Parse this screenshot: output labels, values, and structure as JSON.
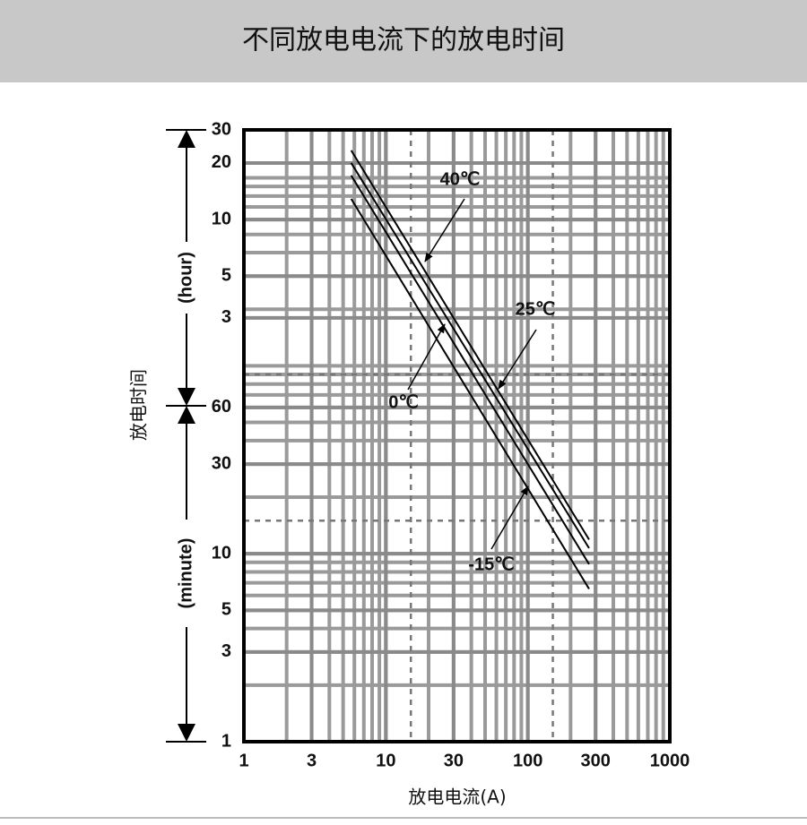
{
  "chart_data": {
    "type": "line",
    "title": "不同放电电流下的放电时间",
    "xlabel": "放电电流(A)",
    "ylabel": "放电时间",
    "y_section_labels": [
      "(hour)",
      "(minute)"
    ],
    "xscale": "log",
    "yscale": "log",
    "xlim": [
      1,
      1000
    ],
    "ylim": [
      1,
      1800
    ],
    "xticks": [
      1,
      3,
      10,
      30,
      100,
      300,
      1000
    ],
    "yticks": [
      1,
      3,
      5,
      10,
      30,
      60,
      {
        "value": 180,
        "label": "3"
      },
      {
        "value": 300,
        "label": "5"
      },
      {
        "value": 600,
        "label": "10"
      },
      {
        "value": 1200,
        "label": "20"
      },
      {
        "value": 1800,
        "label": "30"
      }
    ],
    "grid": true,
    "reference_x": [
      15,
      150
    ],
    "reference_y": [
      15,
      90
    ],
    "series": [
      {
        "name": "40℃",
        "color": "#000000",
        "x": [
          5.7,
          270
        ],
        "values": [
          1400,
          11.9
        ]
      },
      {
        "name": "25℃",
        "color": "#000000",
        "x": [
          5.7,
          270
        ],
        "values": [
          1200,
          10.7
        ]
      },
      {
        "name": "0℃",
        "color": "#000000",
        "x": [
          5.7,
          270
        ],
        "values": [
          1030,
          8.8
        ]
      },
      {
        "name": "-15℃",
        "color": "#000000",
        "x": [
          5.7,
          270
        ],
        "values": [
          773,
          6.5
        ]
      }
    ]
  }
}
